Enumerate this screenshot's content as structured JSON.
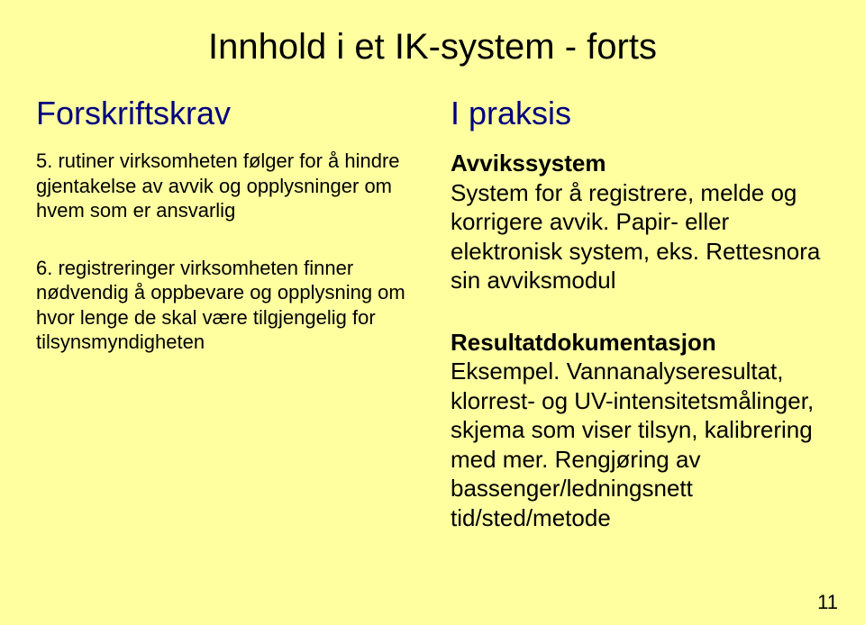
{
  "slide": {
    "background_color": "#ffffa0",
    "title": "Innhold i et IK-system - forts",
    "title_color": "#000000",
    "title_fontsize": 40,
    "heading_color": "#00007f",
    "heading_fontsize": 36,
    "left_fontsize": 22,
    "right_fontsize": 26,
    "page_number": "11"
  },
  "left": {
    "heading": "Forskriftskrav",
    "item5": "5. rutiner virksomheten følger for å hindre gjentakelse av avvik og opplysninger om hvem som er ansvarlig",
    "item6": "6. registreringer virksomheten finner nødvendig å oppbevare og opplysning om hvor lenge de skal være tilgjengelig for tilsynsmyndigheten"
  },
  "right": {
    "heading": "I praksis",
    "block1_bold": "Avvikssystem",
    "block1_text": "System for å registrere, melde og korrigere avvik. Papir- eller elektronisk system, eks. Rettesnora sin avviksmodul",
    "block2_bold": "Resultatdokumentasjon",
    "block2_text": "Eksempel. Vannanalyseresultat, klorrest- og UV-intensitetsmålinger, skjema som viser tilsyn, kalibrering med mer. Rengjøring av bassenger/ledningsnett tid/sted/metode"
  }
}
